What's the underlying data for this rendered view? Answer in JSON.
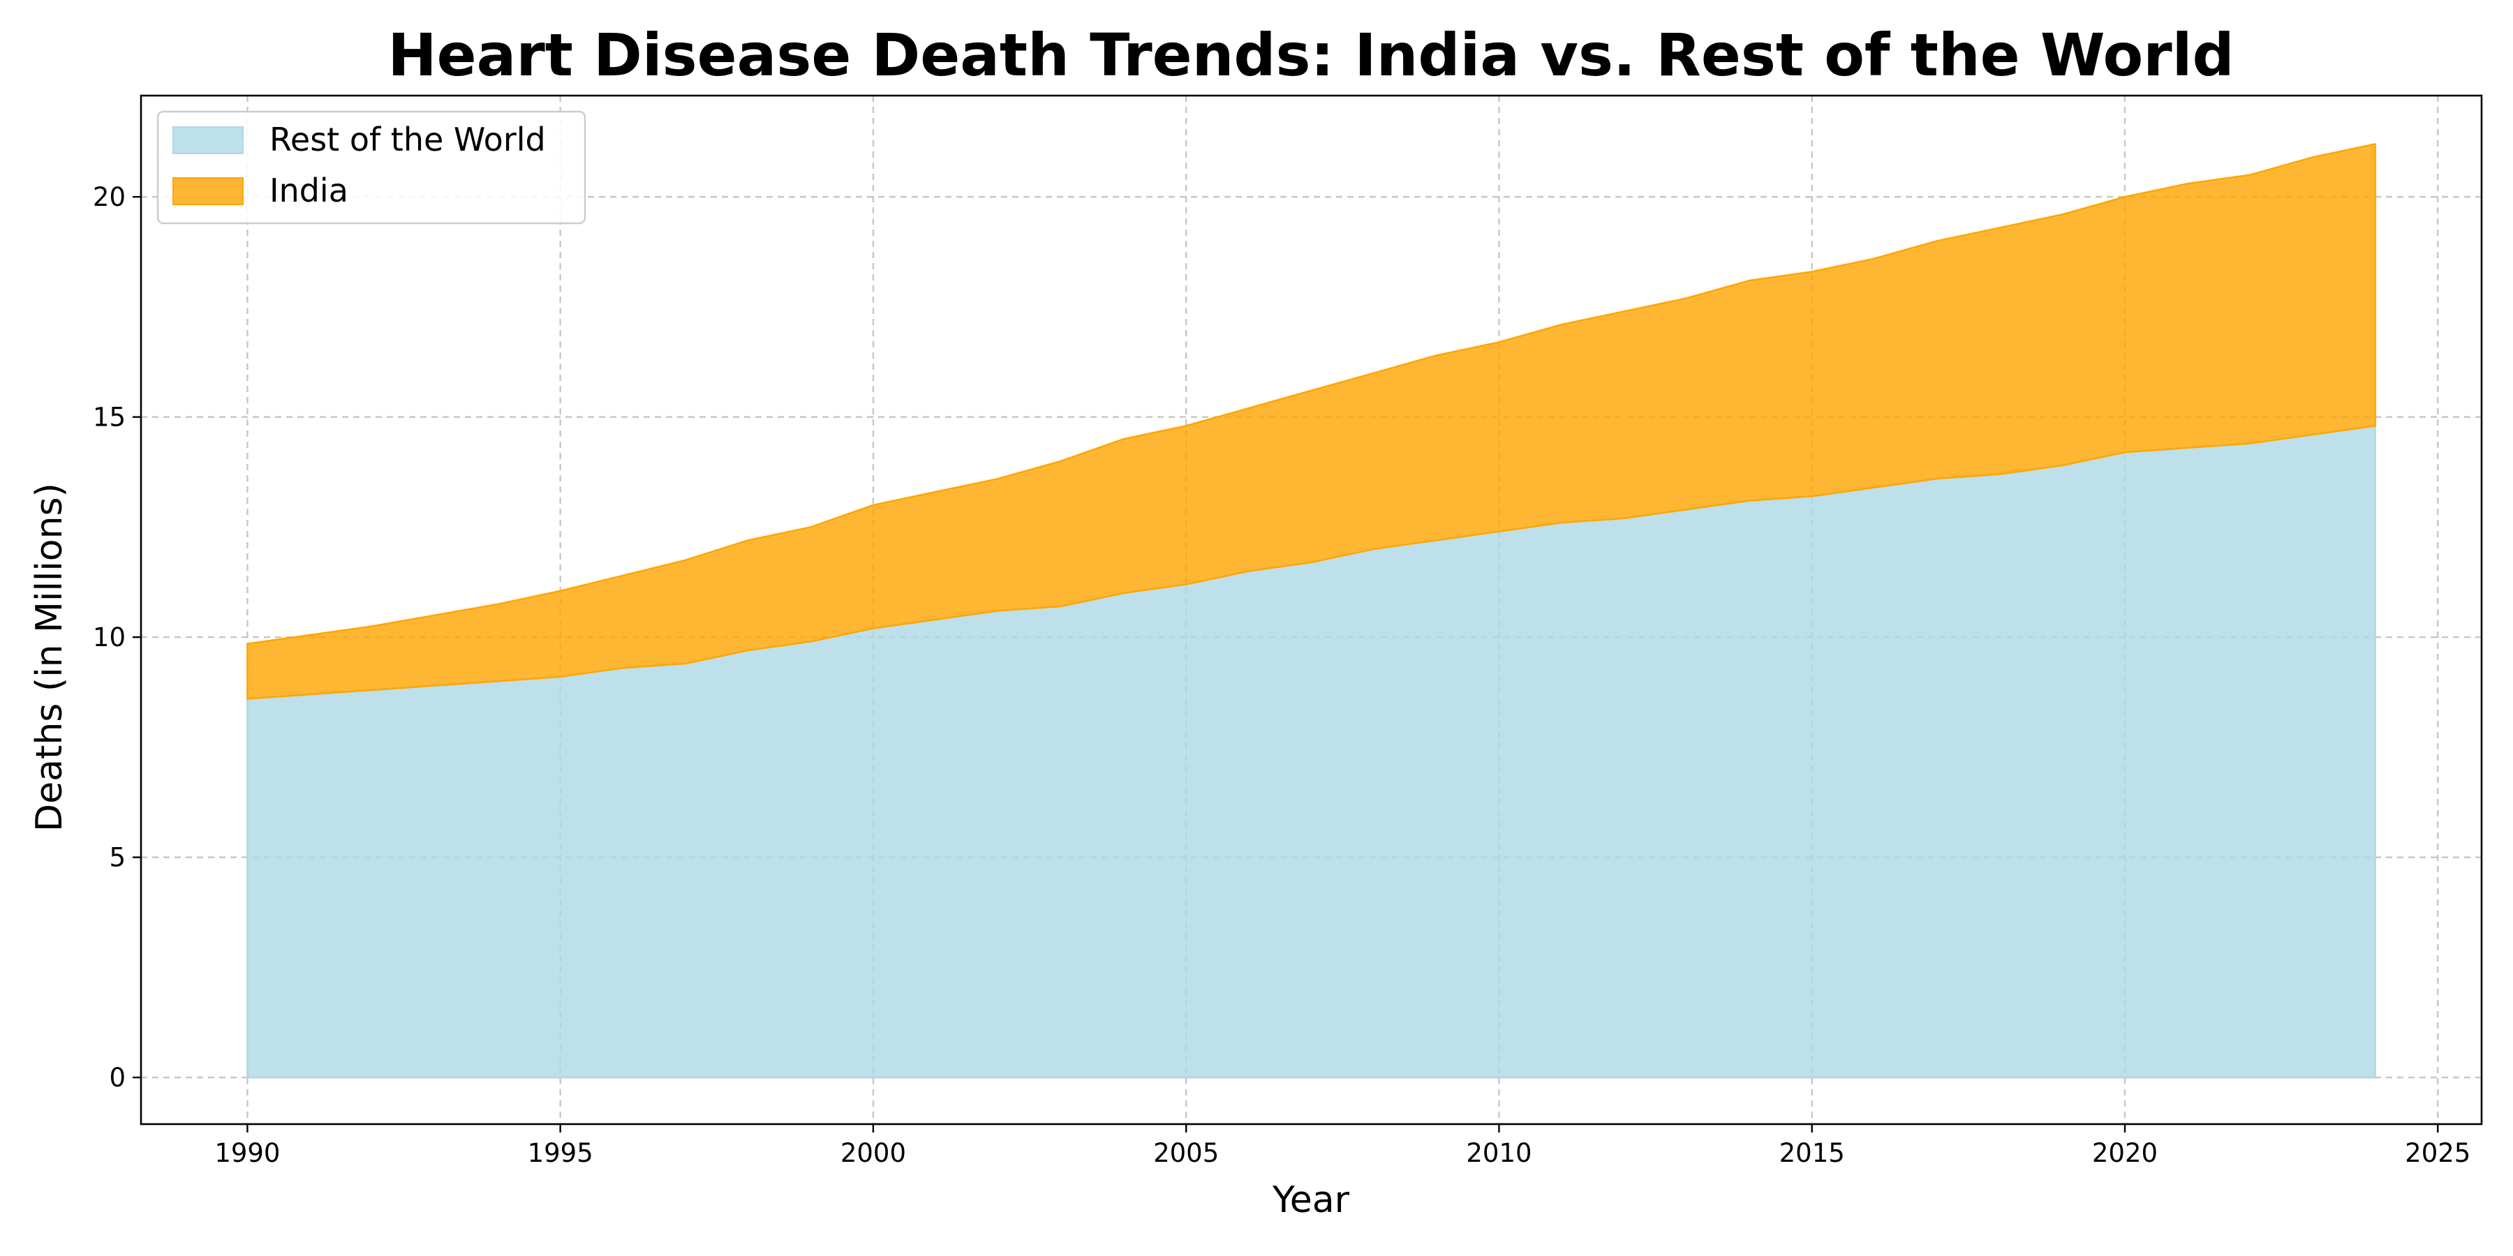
{
  "chart_data": {
    "type": "area",
    "stacked": true,
    "title": "Heart Disease Death Trends: India vs. Rest of the World",
    "xlabel": "Year",
    "ylabel": "Deaths (in Millions)",
    "xlim": [
      1988.3,
      2025.7
    ],
    "ylim": [
      -1.06,
      22.3
    ],
    "xticks": [
      1990,
      1995,
      2000,
      2005,
      2010,
      2015,
      2020,
      2025
    ],
    "yticks": [
      0,
      5,
      10,
      15,
      20
    ],
    "grid": true,
    "legend_position": "upper-left",
    "x": [
      1990,
      1991,
      1992,
      1993,
      1994,
      1995,
      1996,
      1997,
      1998,
      1999,
      2000,
      2001,
      2002,
      2003,
      2004,
      2005,
      2006,
      2007,
      2008,
      2009,
      2010,
      2011,
      2012,
      2013,
      2014,
      2015,
      2016,
      2017,
      2018,
      2019,
      2020,
      2021,
      2022,
      2023,
      2024
    ],
    "series": [
      {
        "name": "Rest of the World",
        "color": "#add8e6",
        "values": [
          8.6,
          8.7,
          8.8,
          8.9,
          9.0,
          9.1,
          9.3,
          9.4,
          9.7,
          9.9,
          10.2,
          10.4,
          10.6,
          10.7,
          11.0,
          11.2,
          11.5,
          11.7,
          12.0,
          12.2,
          12.4,
          12.6,
          12.7,
          12.9,
          13.1,
          13.2,
          13.4,
          13.6,
          13.7,
          13.9,
          14.2,
          14.3,
          14.4,
          14.6,
          14.8
        ]
      },
      {
        "name": "India",
        "color": "#ffa500",
        "values": [
          1.25,
          1.35,
          1.45,
          1.6,
          1.75,
          1.95,
          2.1,
          2.35,
          2.5,
          2.6,
          2.8,
          2.9,
          3.0,
          3.3,
          3.5,
          3.6,
          3.7,
          3.9,
          4.0,
          4.2,
          4.3,
          4.5,
          4.7,
          4.8,
          5.0,
          5.1,
          5.2,
          5.4,
          5.6,
          5.7,
          5.8,
          6.0,
          6.1,
          6.3,
          6.4
        ]
      }
    ]
  }
}
